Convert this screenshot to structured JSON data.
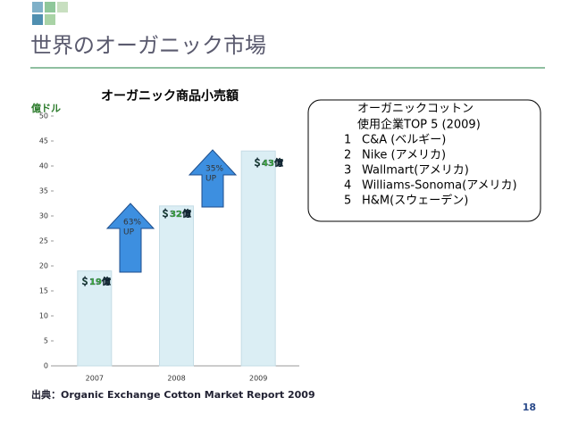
{
  "slide": {
    "title": "世界のオーガニック市場",
    "source": "出典：Organic Exchange Cotton Market Report 2009",
    "page_number": "18",
    "box": {
      "heading": [
        "オーガニックコットン",
        "使用企業TOP 5 (2009)"
      ],
      "items": [
        {
          "rank": "1",
          "name": "C&A (ベルギー)"
        },
        {
          "rank": "2",
          "name": "Nike (アメリカ)"
        },
        {
          "rank": "3",
          "name": "Wallmart(アメリカ)"
        },
        {
          "rank": "4",
          "name": "Williams-Sonoma(アメリカ)"
        },
        {
          "rank": "5",
          "name": "H&M(スウェーデン)"
        }
      ]
    }
  },
  "chart_data": {
    "type": "bar",
    "title": "オーガニック商品小売額",
    "y_label": "億ドル",
    "categories": [
      "2007",
      "2008",
      "2009"
    ],
    "values": [
      19,
      32,
      43
    ],
    "value_labels": [
      "＄19億",
      "＄32億",
      "＄43億"
    ],
    "color": "#dbeef4",
    "ylim": [
      0,
      50
    ],
    "yticks": [
      0,
      5,
      10,
      15,
      20,
      25,
      30,
      35,
      40,
      45,
      50
    ],
    "grid": false,
    "annotations": [
      {
        "lines": [
          "63%",
          "UP"
        ]
      },
      {
        "lines": [
          "35%",
          "UP"
        ]
      }
    ]
  }
}
